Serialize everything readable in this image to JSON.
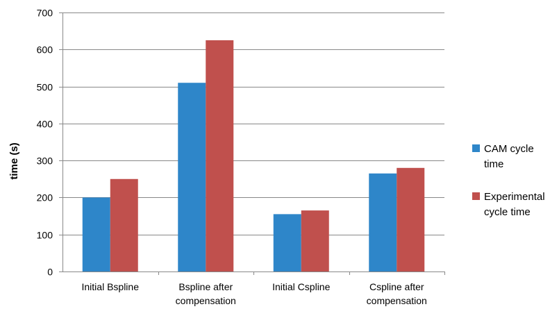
{
  "chart_data": {
    "type": "bar",
    "title": "",
    "xlabel": "",
    "ylabel": "time (s)",
    "ylim": [
      0,
      700
    ],
    "yticks": [
      0,
      100,
      200,
      300,
      400,
      500,
      600,
      700
    ],
    "grid": true,
    "legend_position": "right",
    "categories": [
      [
        "Initial Bspline"
      ],
      [
        "Bspline after",
        "compensation"
      ],
      [
        "Initial Cspline"
      ],
      [
        "Cspline after",
        "compensation"
      ]
    ],
    "series": [
      {
        "name": [
          "CAM cycle",
          "time"
        ],
        "color": "#2E86C9",
        "values": [
          200,
          510,
          155,
          265
        ]
      },
      {
        "name": [
          "Experimental",
          "cycle time"
        ],
        "color": "#C0504D",
        "values": [
          250,
          625,
          165,
          280
        ]
      }
    ]
  }
}
